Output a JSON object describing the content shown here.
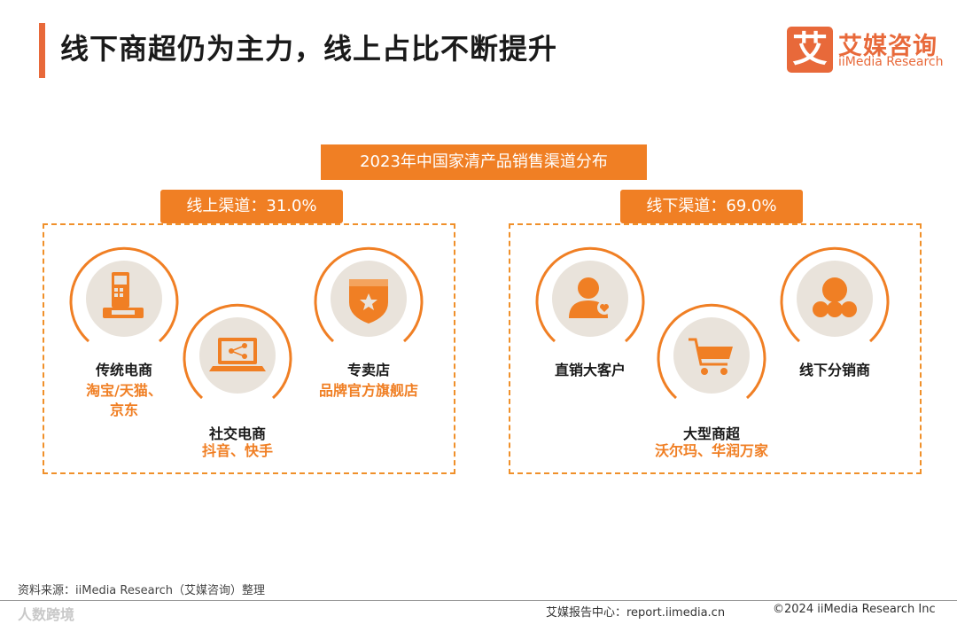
{
  "header": {
    "title": "线下商超仍为主力，线上占比不断提升",
    "logo_mark": "艾",
    "logo_cn": "艾媒咨询",
    "logo_en": "iiMedia Research"
  },
  "diagram": {
    "title": "2023年中国家清产品销售渠道分布",
    "groups": [
      {
        "label": "线上渠道：31.0%",
        "nodes": [
          {
            "icon": "phone-icon",
            "name": "传统电商",
            "sub": [
              "淘宝/天猫、",
              "京东"
            ]
          },
          {
            "icon": "laptop-share-icon",
            "name": "社交电商",
            "sub": [
              "抖音、快手"
            ]
          },
          {
            "icon": "badge-star-icon",
            "name": "专卖店",
            "sub": [
              "品牌官方旗舰店"
            ]
          }
        ]
      },
      {
        "label": "线下渠道：69.0%",
        "nodes": [
          {
            "icon": "user-heart-icon",
            "name": "直销大客户",
            "sub": []
          },
          {
            "icon": "cart-icon",
            "name": "大型商超",
            "sub": [
              "沃尔玛、华润万家"
            ]
          },
          {
            "icon": "group-icon",
            "name": "线下分销商",
            "sub": []
          }
        ]
      }
    ]
  },
  "colors": {
    "accent": "#f07f24",
    "icon_bg": "#e9e3db",
    "icon_fg": "#f07f24"
  },
  "footer": {
    "source": "资料来源：iiMedia Research（艾媒咨询）整理",
    "watermark": "人数跨境",
    "site": "艾媒报告中心：report.iimedia.cn",
    "copyright": "©2024  iiMedia Research  Inc"
  }
}
